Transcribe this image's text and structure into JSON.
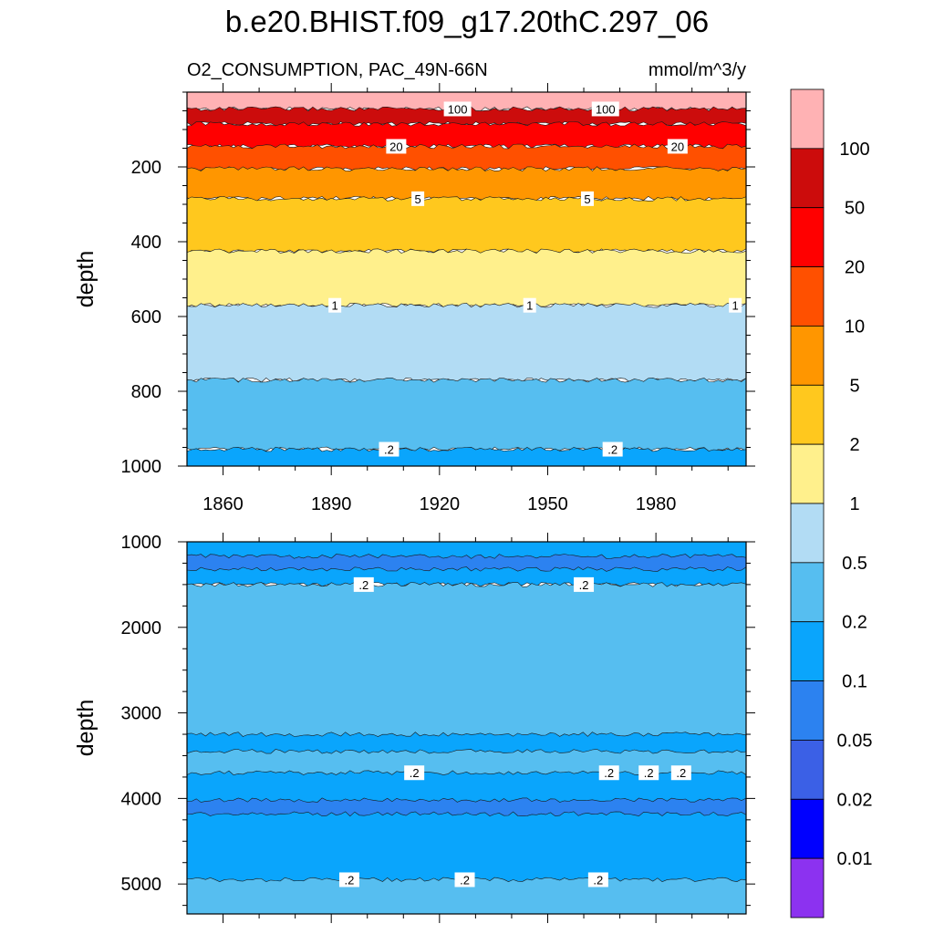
{
  "title": "b.e20.BHIST.f09_g17.20thC.297_06",
  "subtitle_left": "O2_CONSUMPTION, PAC_49N-66N",
  "subtitle_right": "mmol/m^3/y",
  "chart_data": [
    {
      "type": "heatmap",
      "panel": "upper",
      "ylabel": "depth",
      "xlim": [
        1850,
        2005
      ],
      "ylim": [
        0,
        1000
      ],
      "y_inverted": true,
      "xticks": [
        1860,
        1890,
        1920,
        1950,
        1980
      ],
      "yticks": [
        200,
        400,
        600,
        800,
        1000
      ],
      "bands": [
        {
          "level_min": 100,
          "level_max": null,
          "color": "#ffb2b4",
          "depth_top": 0,
          "depth_bottom": 45
        },
        {
          "level_min": 50,
          "level_max": 100,
          "color": "#cc0c0c",
          "depth_top": 45,
          "depth_bottom": 85
        },
        {
          "level_min": 20,
          "level_max": 50,
          "color": "#ff0000",
          "depth_top": 85,
          "depth_bottom": 145
        },
        {
          "level_min": 10,
          "level_max": 20,
          "color": "#ff5000",
          "depth_top": 145,
          "depth_bottom": 205
        },
        {
          "level_min": 5,
          "level_max": 10,
          "color": "#ff9600",
          "depth_top": 205,
          "depth_bottom": 285
        },
        {
          "level_min": 2,
          "level_max": 5,
          "color": "#ffc81e",
          "depth_top": 285,
          "depth_bottom": 425
        },
        {
          "level_min": 1,
          "level_max": 2,
          "color": "#fff08c",
          "depth_top": 425,
          "depth_bottom": 570
        },
        {
          "level_min": 0.5,
          "level_max": 1,
          "color": "#b2dcf4",
          "depth_top": 570,
          "depth_bottom": 770
        },
        {
          "level_min": 0.2,
          "level_max": 0.5,
          "color": "#56bef0",
          "depth_top": 770,
          "depth_bottom": 955
        },
        {
          "level_min": 0.1,
          "level_max": 0.2,
          "color": "#0aa5fc",
          "depth_top": 955,
          "depth_bottom": 1000
        }
      ],
      "contour_labels": [
        {
          "text": "100",
          "x": 1925,
          "y": 45
        },
        {
          "text": "100",
          "x": 1966,
          "y": 45
        },
        {
          "text": "20",
          "x": 1908,
          "y": 145
        },
        {
          "text": "20",
          "x": 1986,
          "y": 145
        },
        {
          "text": "5",
          "x": 1914,
          "y": 285
        },
        {
          "text": "5",
          "x": 1961,
          "y": 285
        },
        {
          "text": "1",
          "x": 1891,
          "y": 570
        },
        {
          "text": "1",
          "x": 1945,
          "y": 570
        },
        {
          "text": "1",
          "x": 2002,
          "y": 570
        },
        {
          "text": ".2",
          "x": 1906,
          "y": 955
        },
        {
          "text": ".2",
          "x": 1968,
          "y": 955
        }
      ]
    },
    {
      "type": "heatmap",
      "panel": "lower",
      "ylabel": "depth",
      "xlim": [
        1850,
        2005
      ],
      "ylim": [
        1000,
        5350
      ],
      "y_inverted": true,
      "yticks": [
        1000,
        2000,
        3000,
        4000,
        5000
      ],
      "bands": [
        {
          "level_min": 0.1,
          "level_max": 0.2,
          "color": "#0aa5fc",
          "depth_top": 1000,
          "depth_bottom": 1500
        },
        {
          "level_min": 0.05,
          "level_max": 0.1,
          "color": "#2c82f0",
          "depth_top": 1170,
          "depth_bottom": 1320
        },
        {
          "level_min": 0.2,
          "level_max": 0.5,
          "color": "#56bef0",
          "depth_top": 1500,
          "depth_bottom": 5350
        },
        {
          "level_min": 0.1,
          "level_max": 0.2,
          "color": "#0aa5fc",
          "depth_top": 3250,
          "depth_bottom": 3450
        },
        {
          "level_min": 0.1,
          "level_max": 0.2,
          "color": "#0aa5fc",
          "depth_top": 3700,
          "depth_bottom": 4950
        },
        {
          "level_min": 0.05,
          "level_max": 0.1,
          "color": "#2c82f0",
          "depth_top": 4020,
          "depth_bottom": 4180
        }
      ],
      "contour_labels": [
        {
          "text": ".2",
          "x": 1899,
          "y": 1500
        },
        {
          "text": ".2",
          "x": 1960,
          "y": 1500
        },
        {
          "text": ".2",
          "x": 1913,
          "y": 3700
        },
        {
          "text": ".2",
          "x": 1967,
          "y": 3700
        },
        {
          "text": ".2",
          "x": 1978,
          "y": 3700
        },
        {
          "text": ".2",
          "x": 1987,
          "y": 3700
        },
        {
          "text": ".2",
          "x": 1895,
          "y": 4950
        },
        {
          "text": ".2",
          "x": 1927,
          "y": 4950
        },
        {
          "text": ".2",
          "x": 1964,
          "y": 4950
        }
      ]
    }
  ],
  "colorbar": {
    "colors": [
      "#ffb2b4",
      "#cc0c0c",
      "#ff0000",
      "#ff5000",
      "#ff9600",
      "#ffc81e",
      "#fff08c",
      "#b2dcf4",
      "#56bef0",
      "#0aa5fc",
      "#2c82f0",
      "#3b60e6",
      "#0000ff",
      "#8c32f0"
    ],
    "labels": [
      "100",
      "50",
      "20",
      "10",
      "5",
      "2",
      "1",
      "0.5",
      "0.2",
      "0.1",
      "0.05",
      "0.02",
      "0.01"
    ]
  }
}
